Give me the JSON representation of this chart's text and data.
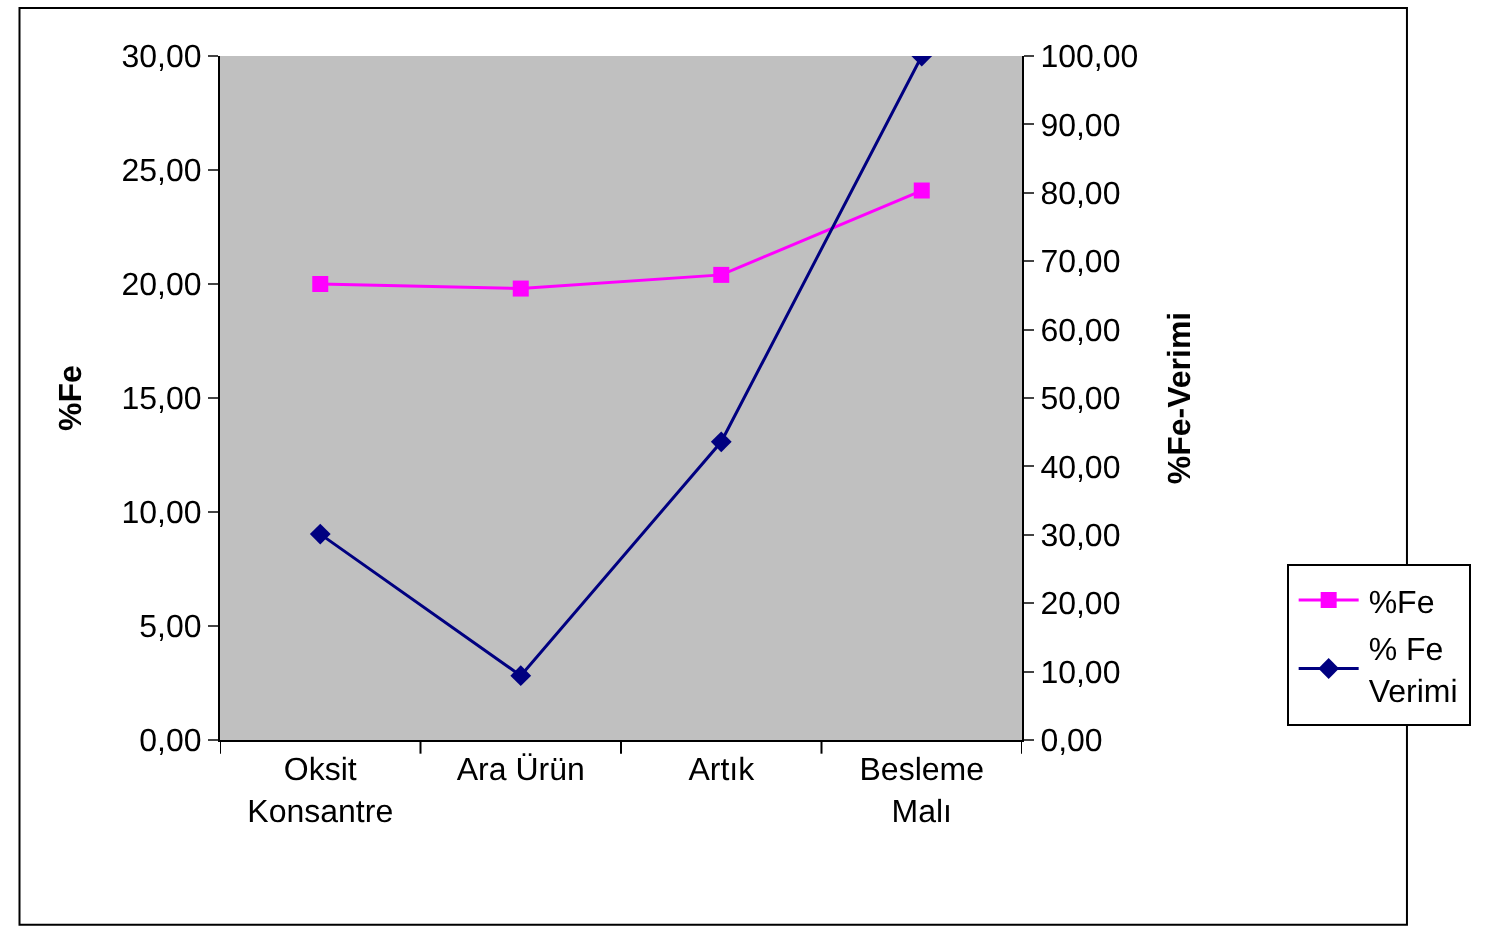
{
  "chart_data": {
    "type": "line",
    "ylabel": "%Fe",
    "y2label": "%Fe-Verimi",
    "categories": [
      "Oksit Konsantre",
      "Ara Ürün",
      "Artık",
      "Besleme Malı"
    ],
    "series": [
      {
        "name": "%Fe",
        "color": "#ff00ff",
        "marker": "square",
        "values": [
          20.0,
          19.8,
          20.4,
          24.1
        ]
      },
      {
        "name": "% Fe Verimi",
        "color": "#000080",
        "marker": "diamond",
        "axis": "y2",
        "values": [
          30.1,
          9.4,
          43.6,
          100.0
        ]
      }
    ],
    "ylim": [
      0,
      30
    ],
    "yticks": [
      {
        "value": 0,
        "label": "0,00"
      },
      {
        "value": 5,
        "label": "5,00"
      },
      {
        "value": 10,
        "label": "10,00"
      },
      {
        "value": 15,
        "label": "15,00"
      },
      {
        "value": 20,
        "label": "20,00"
      },
      {
        "value": 25,
        "label": "25,00"
      },
      {
        "value": 30,
        "label": "30,00"
      }
    ],
    "y2lim": [
      0,
      100
    ],
    "y2ticks": [
      {
        "value": 0,
        "label": "0,00"
      },
      {
        "value": 10,
        "label": "10,00"
      },
      {
        "value": 20,
        "label": "20,00"
      },
      {
        "value": 30,
        "label": "30,00"
      },
      {
        "value": 40,
        "label": "40,00"
      },
      {
        "value": 50,
        "label": "50,00"
      },
      {
        "value": 60,
        "label": "60,00"
      },
      {
        "value": 70,
        "label": "70,00"
      },
      {
        "value": 80,
        "label": "80,00"
      },
      {
        "value": 90,
        "label": "90,00"
      },
      {
        "value": 100,
        "label": "100,00"
      }
    ],
    "grid": false,
    "legend": "bottom right",
    "line_style": "solid"
  }
}
